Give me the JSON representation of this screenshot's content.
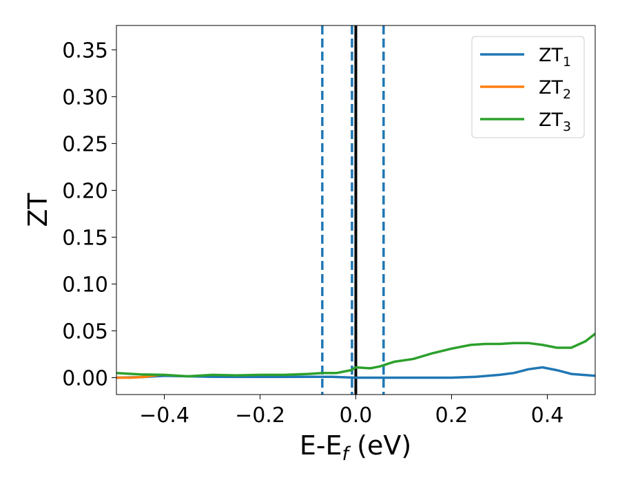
{
  "chart_data": {
    "type": "line",
    "xlabel_main": "E-E",
    "xlabel_sub": "f",
    "xlabel_unit": " (eV)",
    "ylabel": "ZT",
    "xlim": [
      -0.5,
      0.5
    ],
    "ylim": [
      -0.018,
      0.376
    ],
    "xticks": [
      -0.4,
      -0.2,
      0.0,
      0.2,
      0.4
    ],
    "xtick_labels": [
      "−0.4",
      "−0.2",
      "0.0",
      "0.2",
      "0.4"
    ],
    "yticks": [
      0.0,
      0.05,
      0.1,
      0.15,
      0.2,
      0.25,
      0.3,
      0.35
    ],
    "ytick_labels": [
      "0.00",
      "0.05",
      "0.10",
      "0.15",
      "0.20",
      "0.25",
      "0.30",
      "0.35"
    ],
    "grid": false,
    "legend_placement": "top-right",
    "vlines": [
      {
        "x": -0.07,
        "style": "dashed",
        "color": "#1f77b4"
      },
      {
        "x": -0.008,
        "style": "dashed",
        "color": "#1f77b4"
      },
      {
        "x": 0.058,
        "style": "dashed",
        "color": "#1f77b4"
      },
      {
        "x": 0.0,
        "style": "solid",
        "color": "#000000"
      }
    ],
    "series": [
      {
        "name": "ZT",
        "sub": "1",
        "color": "#1f77b4",
        "x": [
          -0.5,
          -0.45,
          -0.4,
          -0.35,
          -0.3,
          -0.25,
          -0.2,
          -0.15,
          -0.1,
          -0.05,
          0.0,
          0.05,
          0.1,
          0.15,
          0.2,
          0.25,
          0.3,
          0.33,
          0.36,
          0.39,
          0.42,
          0.45,
          0.5
        ],
        "y": [
          0.0,
          0.0005,
          0.002,
          0.0015,
          0.001,
          0.0008,
          0.0008,
          0.0008,
          0.001,
          0.001,
          0.0,
          0.0,
          0.0,
          0.0,
          0.0,
          0.001,
          0.003,
          0.005,
          0.009,
          0.011,
          0.008,
          0.004,
          0.002
        ]
      },
      {
        "name": "ZT",
        "sub": "2",
        "color": "#ff7f0e",
        "x": [
          -0.5,
          -0.47,
          -0.44,
          -0.41
        ],
        "y": [
          0.0,
          0.0,
          0.001,
          0.003
        ]
      },
      {
        "name": "ZT",
        "sub": "3",
        "color": "#2ca02c",
        "x": [
          -0.5,
          -0.45,
          -0.4,
          -0.35,
          -0.3,
          -0.25,
          -0.2,
          -0.15,
          -0.1,
          -0.07,
          -0.04,
          -0.01,
          0.0,
          0.03,
          0.05,
          0.08,
          0.12,
          0.16,
          0.2,
          0.24,
          0.27,
          0.3,
          0.33,
          0.36,
          0.39,
          0.42,
          0.45,
          0.48,
          0.5
        ],
        "y": [
          0.005,
          0.0035,
          0.003,
          0.0015,
          0.003,
          0.0025,
          0.003,
          0.003,
          0.004,
          0.005,
          0.005,
          0.008,
          0.011,
          0.01,
          0.012,
          0.017,
          0.02,
          0.026,
          0.031,
          0.035,
          0.036,
          0.036,
          0.037,
          0.037,
          0.035,
          0.032,
          0.032,
          0.039,
          0.047
        ]
      }
    ]
  }
}
